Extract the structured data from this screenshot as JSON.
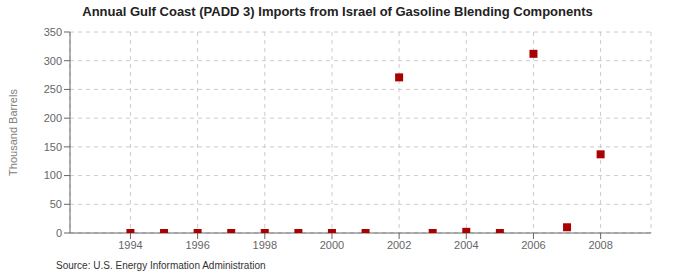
{
  "chart_data": {
    "type": "scatter",
    "title": "Annual Gulf Coast (PADD 3) Imports from Israel of Gasoline Blending Components",
    "y_label": "Thousand Barrels",
    "annotations": [
      "Source: U.S. Energy Information Administration"
    ],
    "x": [
      1994,
      1995,
      1996,
      1997,
      1998,
      1999,
      2000,
      2001,
      2002,
      2003,
      2004,
      2005,
      2006,
      2007,
      2008
    ],
    "values": [
      0,
      0,
      0,
      0,
      0,
      0,
      0,
      0,
      271,
      0,
      2,
      0,
      312,
      10,
      137
    ],
    "color": "#aa0000",
    "marker": "square",
    "xlim": [
      1992.2,
      2009.5
    ],
    "xticks": [
      1994,
      1996,
      1998,
      2000,
      2002,
      2004,
      2006,
      2008
    ],
    "ylim": [
      0,
      350
    ],
    "yticks": [
      0,
      50,
      100,
      150,
      200,
      250,
      300,
      350
    ],
    "grid": true
  }
}
